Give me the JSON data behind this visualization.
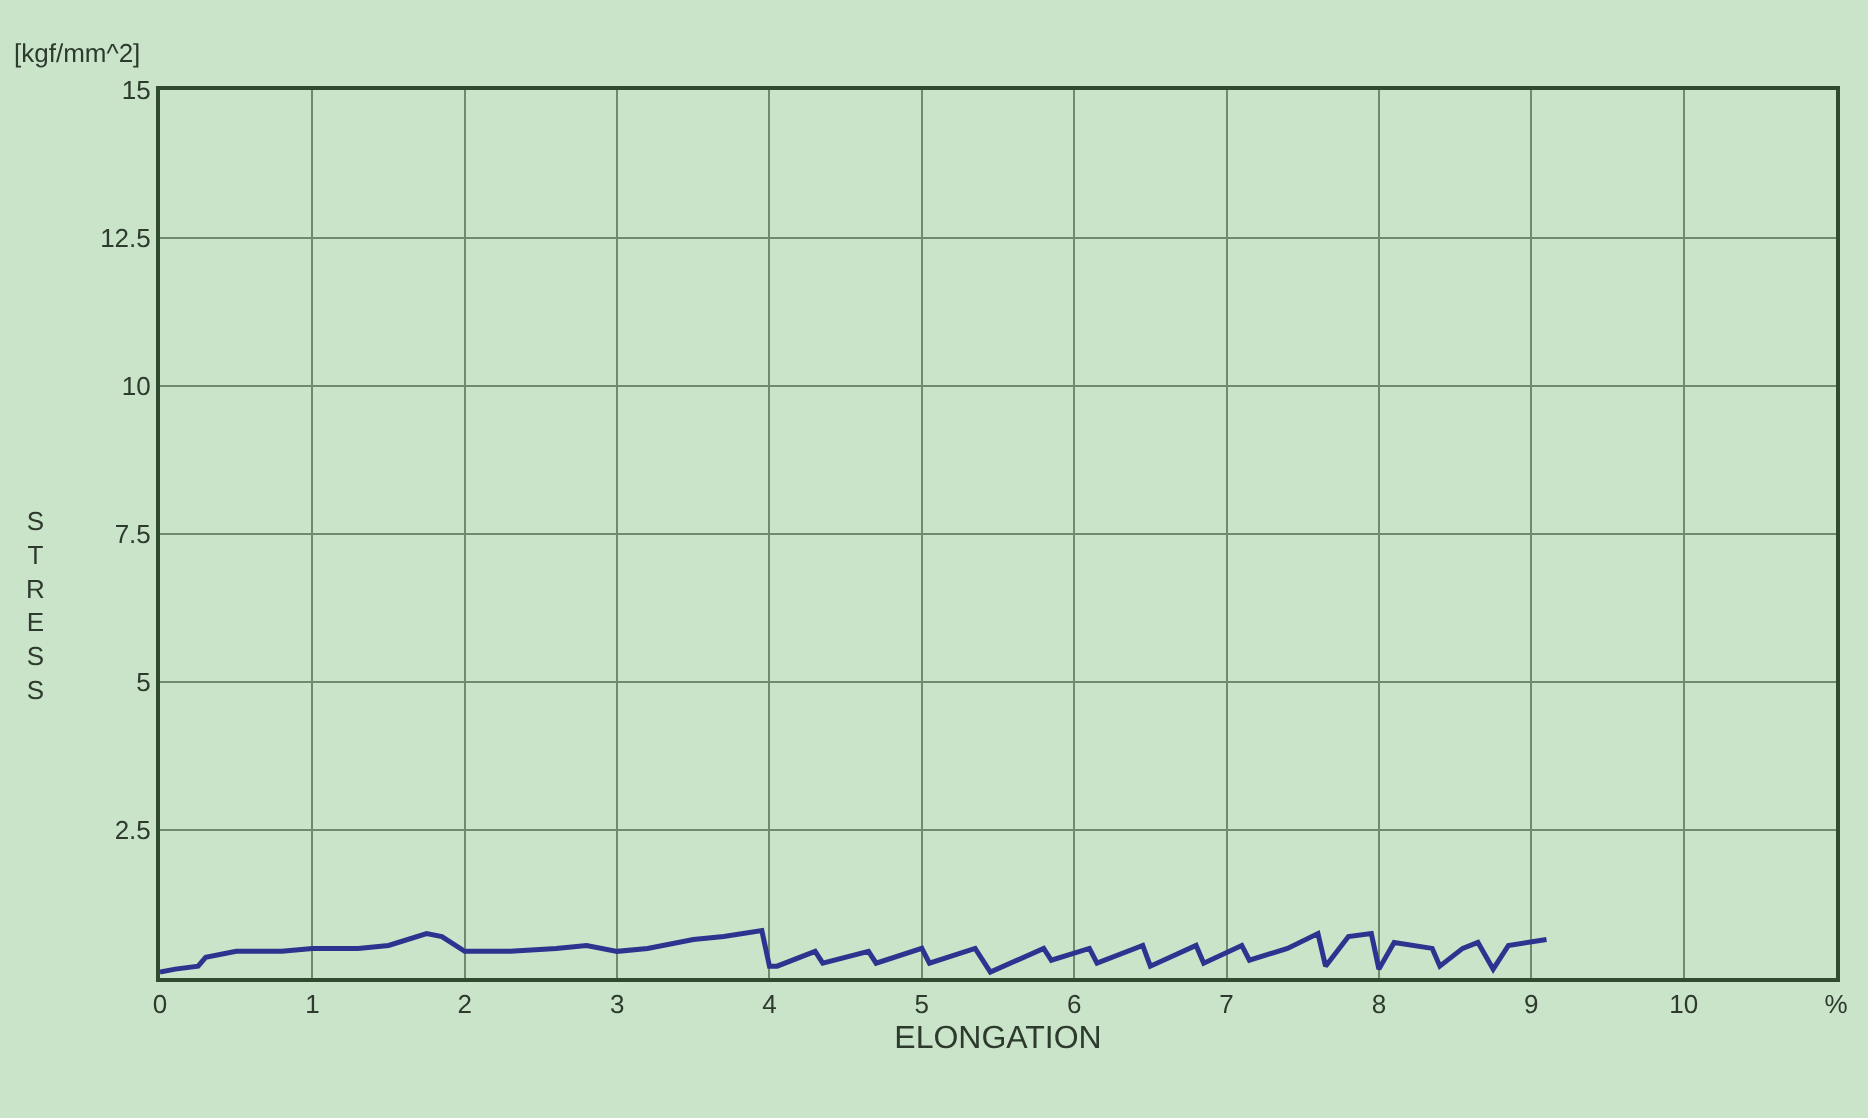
{
  "chart_data": {
    "type": "line",
    "xlabel": "ELONGATION",
    "ylabel": "STRESS",
    "annotations": [
      "[kgf/mm^2]"
    ],
    "x": [
      0,
      0.1,
      0.25,
      0.3,
      0.5,
      0.8,
      1.0,
      1.3,
      1.5,
      1.75,
      1.85,
      2.0,
      2.3,
      2.6,
      2.8,
      3.0,
      3.2,
      3.5,
      3.7,
      3.95,
      4.0,
      4.05,
      4.3,
      4.35,
      4.65,
      4.7,
      5.0,
      5.05,
      5.35,
      5.45,
      5.8,
      5.85,
      6.1,
      6.15,
      6.45,
      6.5,
      6.8,
      6.85,
      7.1,
      7.15,
      7.4,
      7.6,
      7.65,
      7.8,
      7.95,
      8.0,
      8.1,
      8.35,
      8.4,
      8.55,
      8.65,
      8.75,
      8.85,
      9.1
    ],
    "series": [
      {
        "color": "#2b3590",
        "values": [
          0.1,
          0.15,
          0.2,
          0.35,
          0.45,
          0.45,
          0.5,
          0.5,
          0.55,
          0.75,
          0.7,
          0.45,
          0.45,
          0.5,
          0.55,
          0.45,
          0.5,
          0.65,
          0.7,
          0.8,
          0.2,
          0.2,
          0.45,
          0.25,
          0.45,
          0.25,
          0.5,
          0.25,
          0.5,
          0.1,
          0.5,
          0.3,
          0.5,
          0.25,
          0.55,
          0.2,
          0.55,
          0.25,
          0.55,
          0.3,
          0.5,
          0.75,
          0.2,
          0.7,
          0.75,
          0.15,
          0.6,
          0.5,
          0.2,
          0.5,
          0.6,
          0.15,
          0.55,
          0.65
        ]
      }
    ],
    "xlim": [
      0,
      11
    ],
    "xticks": [
      0,
      1,
      2,
      3,
      4,
      5,
      6,
      7,
      8,
      9,
      10,
      {
        "value": 11,
        "label": "%"
      }
    ],
    "ylim": [
      0,
      15
    ],
    "yticks": [
      {
        "value": 0,
        "label": null
      },
      2.5,
      5,
      7.5,
      10,
      12.5,
      15
    ],
    "grid": true,
    "marker": "none",
    "line_style": "solid"
  }
}
